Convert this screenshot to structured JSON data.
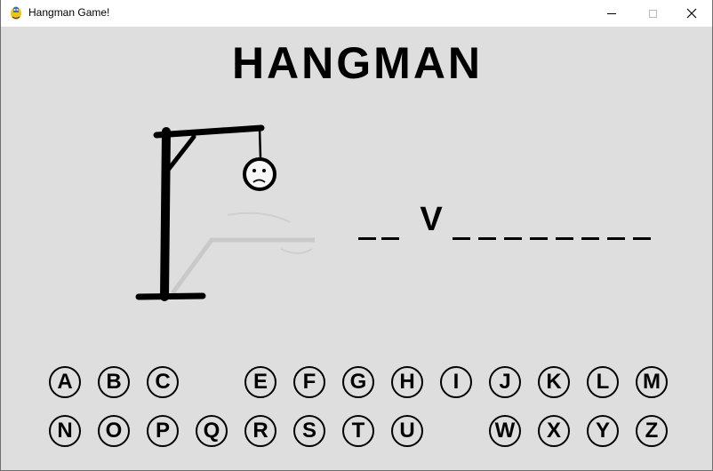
{
  "window": {
    "title": "Hangman Game!"
  },
  "game": {
    "title": "HANGMAN",
    "word_slots": [
      "",
      "",
      "V",
      "",
      "",
      "",
      "",
      "",
      "",
      "",
      ""
    ],
    "letters_row1": [
      "A",
      "B",
      "C",
      "",
      "E",
      "F",
      "G",
      "H",
      "I",
      "J",
      "K",
      "L",
      "M"
    ],
    "letters_row2": [
      "N",
      "O",
      "P",
      "Q",
      "R",
      "S",
      "T",
      "U",
      "",
      "W",
      "X",
      "Y",
      "Z"
    ]
  }
}
